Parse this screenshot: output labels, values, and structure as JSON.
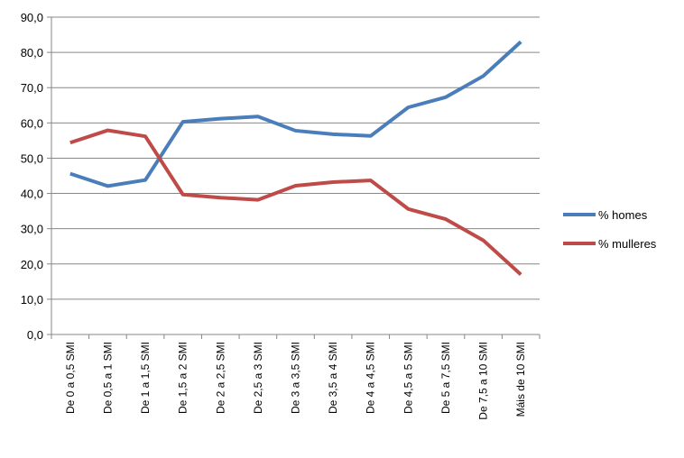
{
  "chart_data": {
    "type": "line",
    "title": "",
    "xlabel": "",
    "ylabel": "",
    "ylim": [
      0,
      90
    ],
    "yticks": [
      "0,0",
      "10,0",
      "20,0",
      "30,0",
      "40,0",
      "50,0",
      "60,0",
      "70,0",
      "80,0",
      "90,0"
    ],
    "grid": true,
    "legend": "right",
    "categories": [
      "De 0 a 0,5 SMI",
      "De 0,5 a 1 SMI",
      "De 1 a 1,5 SMI",
      "De 1,5 a 2 SMI",
      "De 2 a 2,5 SMI",
      "De 2,5 a 3 SMI",
      "De 3 a 3,5 SMI",
      "De 3,5 a 4 SMI",
      "De 4 a 4,5 SMI",
      "De 4,5 a 5 SMI",
      "De 5 a 7,5 SMI",
      "De 7,5 a 10 SMI",
      "Máis de 10 SMI"
    ],
    "series": [
      {
        "name": "% homes",
        "color": "#4a7ebb",
        "values": [
          45.6,
          42.1,
          43.8,
          60.3,
          61.2,
          61.8,
          57.8,
          56.8,
          56.3,
          64.4,
          67.3,
          73.3,
          83.0
        ]
      },
      {
        "name": "% mulleres",
        "color": "#be4b48",
        "values": [
          54.4,
          57.9,
          56.2,
          39.7,
          38.8,
          38.2,
          42.2,
          43.2,
          43.7,
          35.6,
          32.7,
          26.7,
          17.0
        ]
      }
    ]
  }
}
